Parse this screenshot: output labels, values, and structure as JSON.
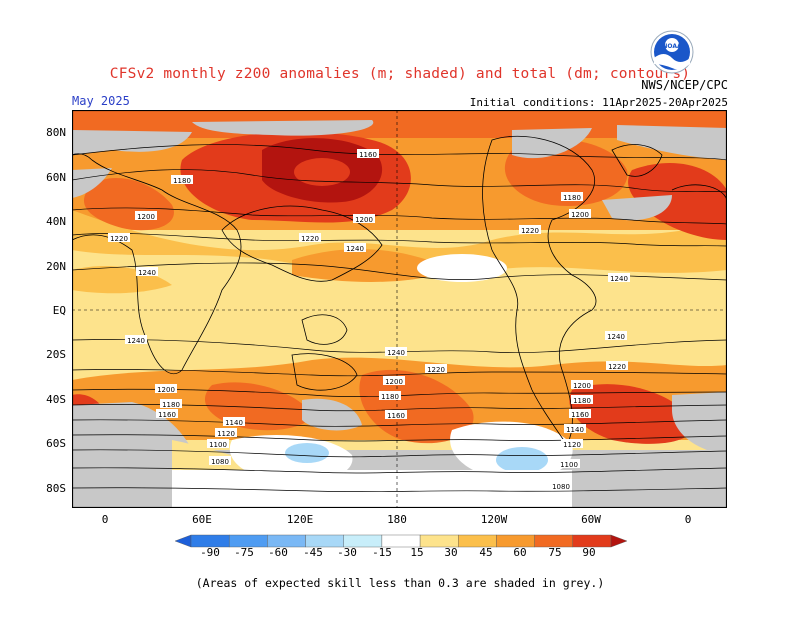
{
  "title": "CFSv2 monthly z200 anomalies (m; shaded) and total (dm; contours)",
  "agency": "NWS/NCEP/CPC",
  "month": "May 2025",
  "initial_conditions": "Initial conditions: 11Apr2025-20Apr2025",
  "lat_labels": [
    "80N",
    "60N",
    "40N",
    "20N",
    "EQ",
    "20S",
    "40S",
    "60S",
    "80S"
  ],
  "lon_labels": [
    "0",
    "60E",
    "120E",
    "180",
    "120W",
    "60W",
    "0"
  ],
  "colorbar": {
    "ticks": [
      "-90",
      "-75",
      "-60",
      "-45",
      "-30",
      "-15",
      "15",
      "30",
      "45",
      "60",
      "75",
      "90"
    ],
    "colors": [
      "#1d5fd9",
      "#2f7de8",
      "#4f9cf2",
      "#7ab8f5",
      "#a8d8f7",
      "#c8eefa",
      "#ffffff",
      "#fde38c",
      "#fbbf4b",
      "#f79a2e",
      "#f16a22",
      "#e23b1b",
      "#b3140f"
    ]
  },
  "contour_labels": [
    "1160",
    "1180",
    "1200",
    "1220",
    "1240",
    "1240",
    "1200",
    "1220",
    "1240",
    "1200",
    "1180",
    "1220",
    "1240",
    "1220",
    "1240",
    "1200",
    "1180",
    "1160",
    "1140",
    "1120",
    "1100",
    "1080",
    "1200",
    "1180",
    "1160",
    "1240",
    "1220",
    "1200",
    "1180",
    "1160",
    "1140",
    "1120",
    "1100",
    "1080"
  ],
  "footnote": "(Areas of expected skill less than 0.3 are shaded in grey.)"
}
